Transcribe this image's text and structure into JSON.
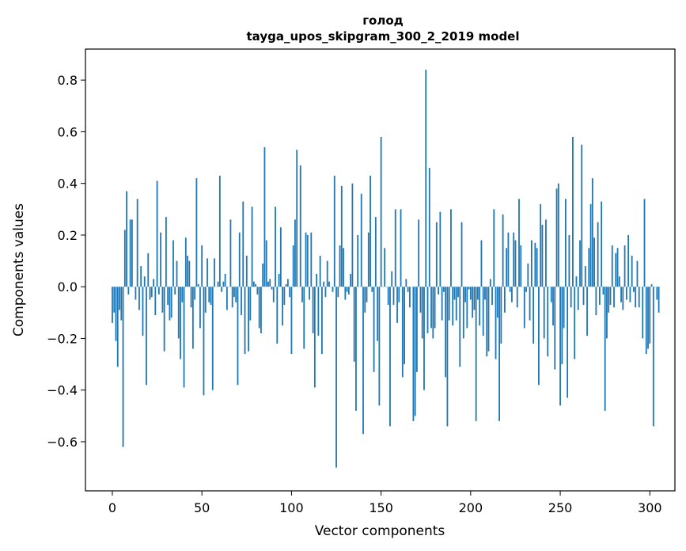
{
  "chart_data": {
    "type": "bar",
    "title_line1": "голод",
    "title_line2": "tayga_upos_skipgram_300_2_2019 model",
    "xlabel": "Vector components",
    "ylabel": "Components values",
    "xlim": [
      -15,
      314
    ],
    "ylim": [
      -0.79,
      0.92
    ],
    "xticks": [
      0,
      50,
      100,
      150,
      200,
      250,
      300
    ],
    "yticks": [
      -0.6,
      -0.4,
      -0.2,
      0.0,
      0.2,
      0.4,
      0.6,
      0.8
    ],
    "ytick_labels": [
      "−0.6",
      "−0.4",
      "−0.2",
      "0.0",
      "0.2",
      "0.4",
      "0.6",
      "0.8"
    ],
    "xtick_labels": [
      "0",
      "50",
      "100",
      "150",
      "200",
      "250",
      "300"
    ],
    "bar_color": "#1f77b4",
    "values": [
      -0.14,
      -0.1,
      -0.21,
      -0.31,
      -0.09,
      -0.13,
      -0.62,
      0.22,
      0.37,
      -0.03,
      0.26,
      0.26,
      0.0,
      -0.05,
      0.34,
      -0.09,
      0.08,
      -0.19,
      0.04,
      -0.38,
      0.13,
      -0.05,
      -0.04,
      0.03,
      -0.11,
      0.41,
      -0.03,
      0.21,
      -0.1,
      -0.25,
      0.27,
      -0.07,
      -0.13,
      -0.12,
      0.18,
      -0.03,
      0.1,
      -0.2,
      -0.28,
      -0.06,
      -0.39,
      0.19,
      0.12,
      0.1,
      -0.08,
      -0.24,
      -0.05,
      0.42,
      0.01,
      -0.16,
      0.16,
      -0.42,
      -0.1,
      0.11,
      -0.06,
      -0.07,
      -0.4,
      0.11,
      0.0,
      0.02,
      0.43,
      -0.02,
      0.02,
      0.05,
      -0.09,
      0.0,
      0.26,
      -0.08,
      -0.04,
      -0.06,
      -0.38,
      0.21,
      -0.11,
      0.33,
      -0.26,
      0.12,
      -0.25,
      -0.13,
      0.31,
      0.02,
      0.01,
      -0.03,
      -0.16,
      -0.18,
      0.09,
      0.54,
      0.18,
      0.02,
      0.03,
      -0.01,
      -0.06,
      0.31,
      -0.22,
      0.05,
      0.23,
      -0.15,
      -0.07,
      0.01,
      0.03,
      -0.04,
      -0.26,
      0.16,
      0.26,
      0.53,
      0.0,
      0.47,
      -0.06,
      -0.24,
      0.21,
      0.2,
      -0.05,
      0.21,
      -0.18,
      -0.39,
      0.05,
      -0.19,
      0.12,
      -0.26,
      0.02,
      -0.04,
      0.1,
      0.02,
      0.0,
      -0.02,
      0.43,
      -0.7,
      -0.04,
      0.16,
      0.39,
      0.15,
      -0.05,
      -0.02,
      -0.03,
      0.05,
      0.4,
      -0.29,
      -0.48,
      0.2,
      0.0,
      0.36,
      -0.57,
      -0.1,
      -0.06,
      0.21,
      0.43,
      -0.02,
      -0.33,
      0.27,
      -0.21,
      -0.46,
      0.58,
      0.0,
      0.15,
      0.0,
      -0.07,
      -0.54,
      0.06,
      -0.07,
      0.3,
      -0.14,
      -0.06,
      0.3,
      -0.35,
      -0.3,
      0.03,
      -0.02,
      -0.08,
      0.0,
      -0.52,
      -0.5,
      -0.33,
      0.26,
      -0.1,
      -0.2,
      -0.4,
      0.84,
      -0.18,
      0.46,
      -0.16,
      -0.2,
      -0.16,
      0.25,
      -0.03,
      0.29,
      -0.13,
      -0.02,
      -0.35,
      -0.54,
      -0.13,
      0.3,
      -0.15,
      -0.05,
      -0.13,
      -0.04,
      -0.31,
      0.25,
      -0.2,
      -0.06,
      -0.16,
      -0.01,
      -0.05,
      -0.12,
      -0.09,
      -0.52,
      -0.05,
      -0.15,
      0.18,
      -0.19,
      -0.05,
      -0.27,
      -0.25,
      0.03,
      -0.07,
      0.3,
      -0.28,
      -0.12,
      -0.52,
      -0.22,
      0.28,
      -0.1,
      0.15,
      0.21,
      -0.02,
      -0.06,
      0.21,
      0.18,
      -0.08,
      0.34,
      0.16,
      0.0,
      -0.16,
      -0.02,
      0.09,
      -0.13,
      0.18,
      -0.22,
      0.17,
      0.15,
      -0.38,
      0.32,
      0.24,
      -0.2,
      0.26,
      -0.27,
      0.0,
      -0.06,
      -0.15,
      -0.32,
      0.38,
      0.4,
      -0.46,
      -0.3,
      -0.16,
      0.34,
      -0.43,
      0.2,
      -0.08,
      0.58,
      -0.28,
      0.04,
      -0.09,
      0.18,
      0.55,
      -0.07,
      0.08,
      -0.19,
      0.15,
      0.32,
      0.42,
      0.19,
      -0.11,
      0.25,
      -0.07,
      0.33,
      -0.03,
      -0.48,
      -0.2,
      -0.1,
      -0.07,
      0.16,
      -0.08,
      0.13,
      0.15,
      0.04,
      -0.06,
      -0.09,
      0.16,
      -0.05,
      0.2,
      -0.06,
      0.12,
      -0.02,
      -0.08,
      0.1,
      -0.08,
      0.0,
      -0.2,
      0.34,
      -0.26,
      -0.24,
      -0.22,
      0.01,
      -0.54,
      0.0,
      -0.05,
      -0.1
    ]
  }
}
